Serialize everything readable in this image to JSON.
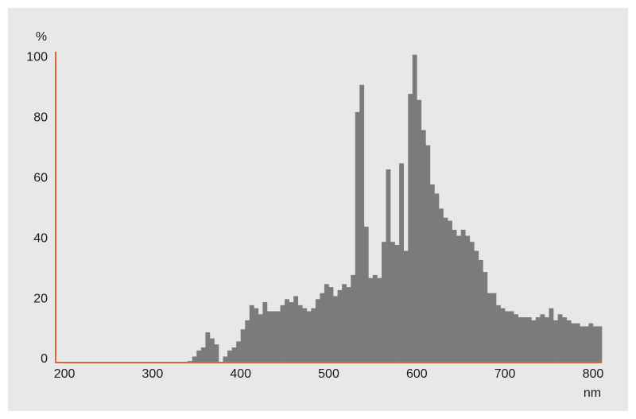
{
  "chart_data": {
    "type": "histogram",
    "y_label": "%",
    "x_label": "nm",
    "color": "#7b7b7b",
    "axis_color": "#e0643a",
    "bins": [
      340,
      345,
      350,
      355,
      360,
      365,
      370,
      375,
      380,
      385,
      390,
      395,
      400,
      405,
      410,
      415,
      420,
      425,
      430,
      435,
      440,
      445,
      450,
      455,
      460,
      465,
      470,
      475,
      480,
      485,
      490,
      495,
      500,
      505,
      510,
      515,
      520,
      525,
      530,
      535,
      540,
      545,
      550,
      555,
      560,
      565,
      570,
      575,
      580,
      585,
      590,
      595,
      600,
      605,
      610,
      615,
      620,
      625,
      630,
      635,
      640,
      645,
      650,
      655,
      660,
      665,
      670,
      675,
      680,
      685,
      690,
      695,
      700,
      705,
      710,
      715,
      720,
      725,
      730,
      735,
      740,
      745,
      750,
      755,
      760,
      765,
      770,
      775,
      780,
      785,
      790,
      795,
      800,
      805,
      810
    ],
    "values": [
      0.5,
      2,
      4,
      5,
      10,
      8,
      6,
      0,
      2,
      4,
      5,
      7,
      11,
      14,
      19,
      18,
      16,
      20,
      17,
      17,
      17,
      19,
      21,
      20,
      22,
      19,
      18,
      17,
      18,
      21,
      23,
      26,
      25,
      22,
      24,
      26,
      25,
      29,
      83,
      92,
      45,
      28,
      29,
      28,
      40,
      64,
      40,
      39,
      66,
      37,
      89,
      102,
      87,
      77,
      72,
      59,
      56,
      51,
      48,
      47,
      44,
      42,
      44,
      42,
      40,
      37,
      34,
      30,
      23,
      23,
      19,
      18,
      17,
      17,
      16,
      15,
      15,
      15,
      14,
      15,
      16,
      15,
      18,
      14,
      16,
      15,
      14,
      13,
      13,
      12,
      12,
      13,
      12,
      12
    ],
    "xlim": [
      190,
      810
    ],
    "ylim": [
      0,
      103
    ],
    "xticks": [
      200,
      300,
      400,
      500,
      600,
      700,
      800
    ],
    "yticks": [
      0,
      20,
      40,
      60,
      80,
      100
    ]
  }
}
